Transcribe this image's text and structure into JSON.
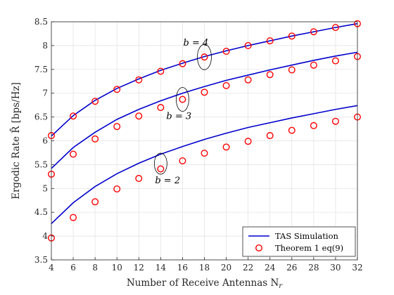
{
  "chart_data": {
    "type": "line",
    "xlabel": "Number of Receive Antennas N",
    "xlabel_sub": "r",
    "ylabel": "Ergodic Rate R̄ [bps/Hz]",
    "xlim": [
      4,
      32
    ],
    "ylim": [
      3.5,
      8.5
    ],
    "x": [
      4,
      6,
      8,
      10,
      12,
      14,
      16,
      18,
      20,
      22,
      24,
      26,
      28,
      30,
      32
    ],
    "xticks": [
      "4",
      "6",
      "8",
      "10",
      "12",
      "14",
      "16",
      "18",
      "20",
      "22",
      "24",
      "26",
      "28",
      "30",
      "32"
    ],
    "yticks": [
      "3.5",
      "4",
      "4.5",
      "5",
      "5.5",
      "6",
      "6.5",
      "7",
      "7.5",
      "8",
      "8.5"
    ],
    "grid": true,
    "legend_position": "bottom-right",
    "series": [
      {
        "name": "TAS Simulation",
        "group": "b=2",
        "style": "line",
        "color": "#0000cc",
        "values": [
          4.26,
          4.7,
          5.04,
          5.31,
          5.53,
          5.72,
          5.88,
          6.03,
          6.16,
          6.28,
          6.38,
          6.48,
          6.57,
          6.66,
          6.74
        ]
      },
      {
        "name": "Theorem 1 eq(9)",
        "group": "b=2",
        "style": "marker",
        "color": "#ff0000",
        "values": [
          3.96,
          4.39,
          4.72,
          4.99,
          5.21,
          5.41,
          5.58,
          5.74,
          5.87,
          5.99,
          6.11,
          6.22,
          6.32,
          6.41,
          6.5
        ]
      },
      {
        "name": "TAS Simulation",
        "group": "b=3",
        "style": "line",
        "color": "#0000cc",
        "values": [
          5.42,
          5.86,
          6.18,
          6.45,
          6.66,
          6.84,
          7.0,
          7.14,
          7.27,
          7.38,
          7.49,
          7.59,
          7.69,
          7.78,
          7.86
        ]
      },
      {
        "name": "Theorem 1 eq(9)",
        "group": "b=3",
        "style": "marker",
        "color": "#ff0000",
        "values": [
          5.3,
          5.72,
          6.04,
          6.3,
          6.52,
          6.7,
          6.87,
          7.02,
          7.16,
          7.28,
          7.39,
          7.49,
          7.59,
          7.68,
          7.77
        ]
      },
      {
        "name": "TAS Simulation",
        "group": "b=4",
        "style": "line",
        "color": "#0000cc",
        "values": [
          6.1,
          6.53,
          6.85,
          7.1,
          7.3,
          7.48,
          7.63,
          7.77,
          7.89,
          8.0,
          8.1,
          8.2,
          8.29,
          8.38,
          8.46
        ]
      },
      {
        "name": "Theorem 1 eq(9)",
        "group": "b=4",
        "style": "marker",
        "color": "#ff0000",
        "values": [
          6.11,
          6.52,
          6.83,
          7.08,
          7.28,
          7.46,
          7.62,
          7.76,
          7.88,
          8.0,
          8.1,
          8.2,
          8.29,
          8.38,
          8.46
        ]
      }
    ],
    "legend": [
      {
        "label": "TAS Simulation",
        "style": "line",
        "color": "#0000cc"
      },
      {
        "label": "Theorem 1 eq(9)",
        "style": "marker",
        "color": "#ff0000"
      }
    ],
    "annotations": [
      {
        "text": "b = 2",
        "x": 14,
        "y": 5.52
      },
      {
        "text": "b = 3",
        "x": 16,
        "y": 6.87
      },
      {
        "text": "b = 4",
        "x": 18,
        "y": 7.76
      }
    ],
    "colors": {
      "line": "#0000cc",
      "marker": "#ff0000",
      "grid": "#e0e0e0",
      "axis": "#262626"
    }
  }
}
